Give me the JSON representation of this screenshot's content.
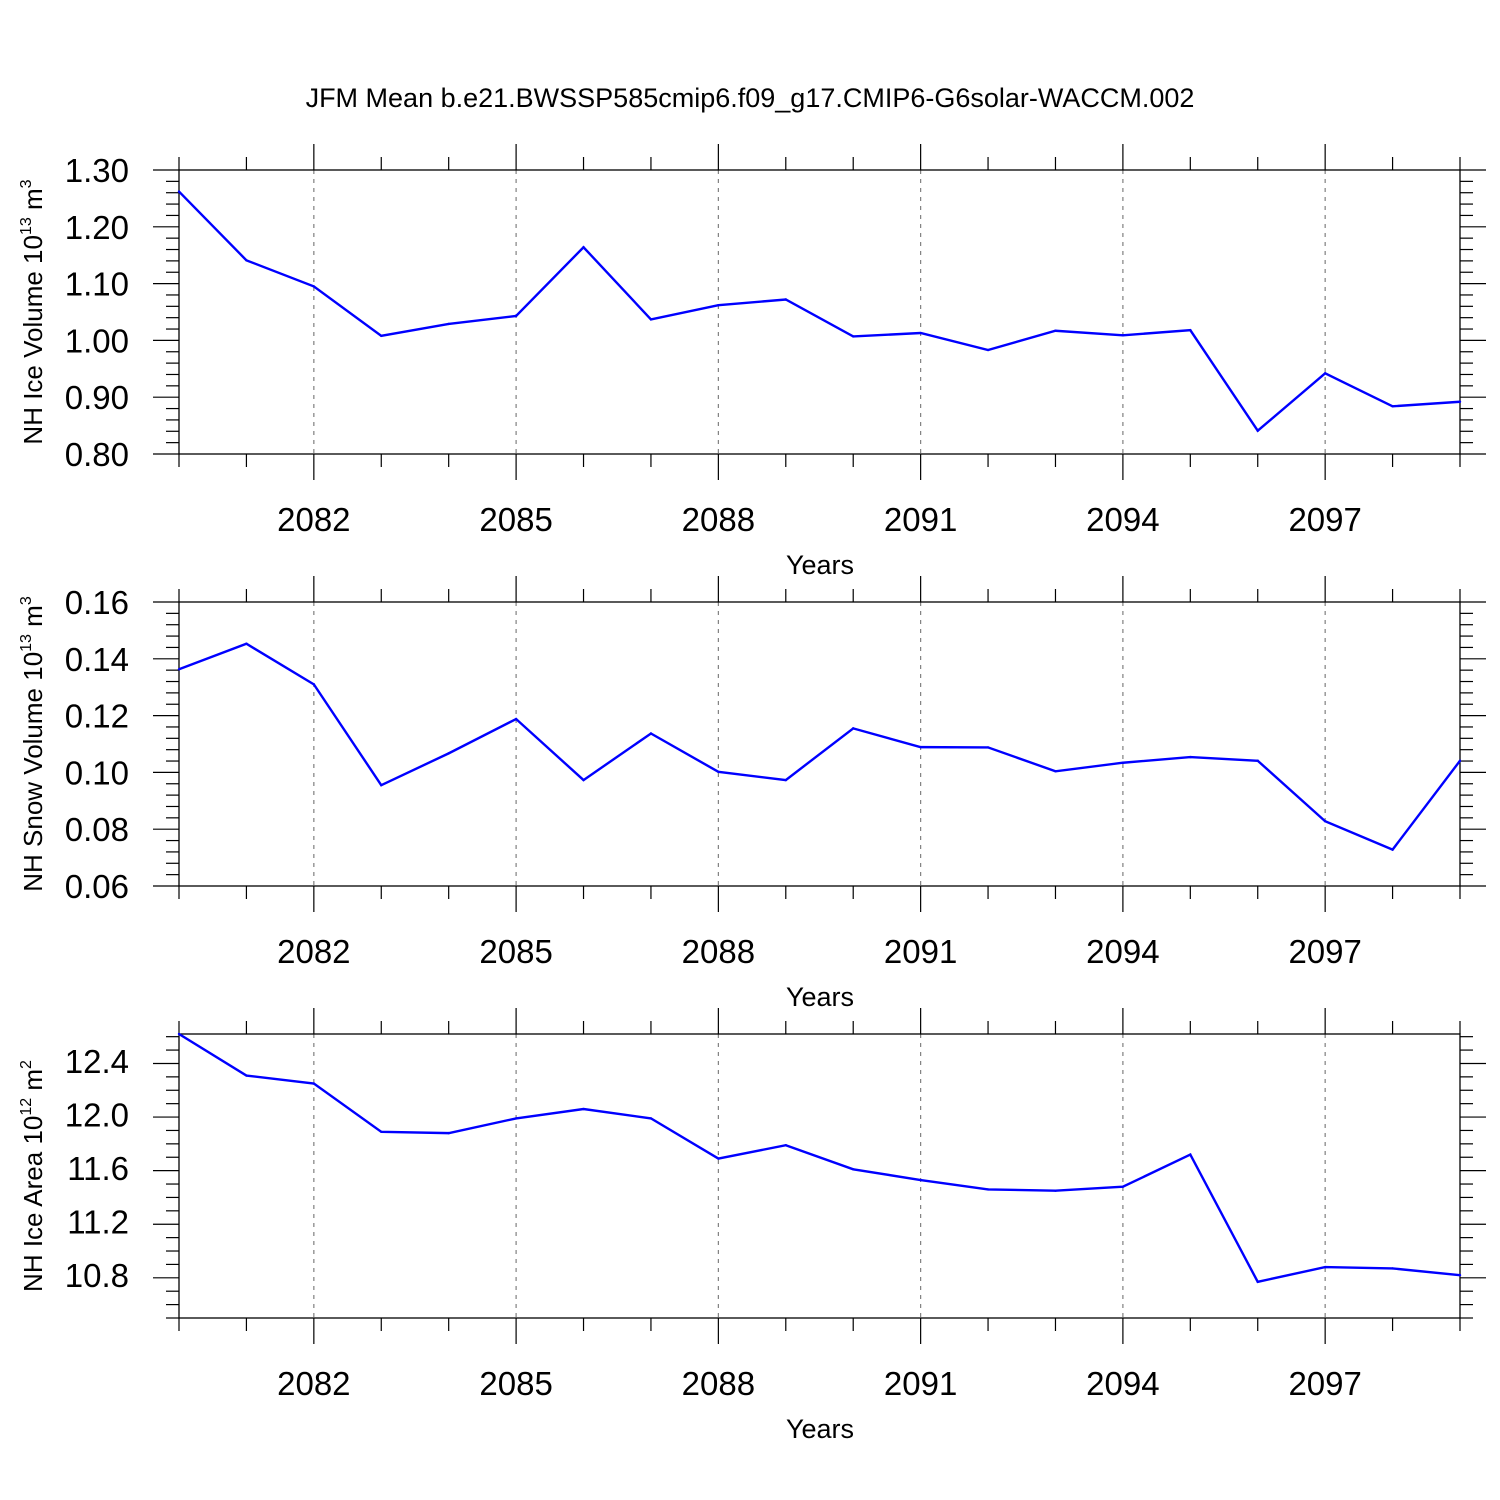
{
  "title": "JFM Mean b.e21.BWSSP585cmip6.f09_g17.CMIP6-G6solar-WACCM.002",
  "colors": {
    "line": "#0000ff",
    "grid": "#808080",
    "axis": "#000000"
  },
  "chart_data": [
    {
      "type": "line",
      "xlabel": "Years",
      "ylabel": {
        "text": "NH Ice Volume 10",
        "sup1": "13",
        "mid": " m",
        "sup2": "3"
      },
      "x": [
        2080,
        2081,
        2082,
        2083,
        2084,
        2085,
        2086,
        2087,
        2088,
        2089,
        2090,
        2091,
        2092,
        2093,
        2094,
        2095,
        2096,
        2097,
        2098,
        2099
      ],
      "series": [
        {
          "values": [
            1.262,
            1.141,
            1.095,
            1.008,
            1.029,
            1.043,
            1.164,
            1.037,
            1.062,
            1.072,
            1.007,
            1.013,
            0.983,
            1.017,
            1.009,
            1.018,
            0.841,
            0.942,
            0.884,
            0.892
          ]
        }
      ],
      "xlim": [
        2080,
        2099
      ],
      "ylim": [
        0.8,
        1.3
      ],
      "xticks": [
        2082,
        2085,
        2088,
        2091,
        2094,
        2097
      ],
      "xtick_labels": [
        "2082",
        "2085",
        "2088",
        "2091",
        "2094",
        "2097"
      ],
      "yticks": [
        0.8,
        0.9,
        1.0,
        1.1,
        1.2,
        1.3
      ],
      "ytick_labels": [
        "0.80",
        "0.90",
        "1.00",
        "1.10",
        "1.20",
        "1.30"
      ],
      "y_minor_step": 0.02,
      "grid": "vertical dashed at x major ticks"
    },
    {
      "type": "line",
      "xlabel": "Years",
      "ylabel": {
        "text": "NH Snow Volume 10",
        "sup1": "13",
        "mid": " m",
        "sup2": "3"
      },
      "x": [
        2080,
        2081,
        2082,
        2083,
        2084,
        2085,
        2086,
        2087,
        2088,
        2089,
        2090,
        2091,
        2092,
        2093,
        2094,
        2095,
        2096,
        2097,
        2098,
        2099
      ],
      "series": [
        {
          "values": [
            0.1363,
            0.1453,
            0.131,
            0.0955,
            0.1067,
            0.1188,
            0.0973,
            0.1137,
            0.1002,
            0.0973,
            0.1155,
            0.1089,
            0.1088,
            0.1004,
            0.1034,
            0.1054,
            0.1041,
            0.0828,
            0.0728,
            0.1041
          ]
        }
      ],
      "xlim": [
        2080,
        2099
      ],
      "ylim": [
        0.06,
        0.16
      ],
      "xticks": [
        2082,
        2085,
        2088,
        2091,
        2094,
        2097
      ],
      "xtick_labels": [
        "2082",
        "2085",
        "2088",
        "2091",
        "2094",
        "2097"
      ],
      "yticks": [
        0.06,
        0.08,
        0.1,
        0.12,
        0.14,
        0.16
      ],
      "ytick_labels": [
        "0.06",
        "0.08",
        "0.10",
        "0.12",
        "0.14",
        "0.16"
      ],
      "y_minor_step": 0.004,
      "grid": "vertical dashed at x major ticks"
    },
    {
      "type": "line",
      "xlabel": "Years",
      "ylabel": {
        "text": "NH Ice Area 10",
        "sup1": "12",
        "mid": " m",
        "sup2": "2"
      },
      "x": [
        2080,
        2081,
        2082,
        2083,
        2084,
        2085,
        2086,
        2087,
        2088,
        2089,
        2090,
        2091,
        2092,
        2093,
        2094,
        2095,
        2096,
        2097,
        2098,
        2099
      ],
      "series": [
        {
          "values": [
            12.6,
            12.29,
            12.23,
            11.87,
            11.86,
            11.97,
            12.04,
            11.97,
            11.67,
            11.77,
            11.59,
            11.51,
            11.44,
            11.43,
            11.46,
            11.7,
            10.75,
            10.86,
            10.85,
            10.8
          ]
        }
      ],
      "xlim": [
        2080,
        2099
      ],
      "ylim": [
        10.48,
        12.6
      ],
      "xticks": [
        2082,
        2085,
        2088,
        2091,
        2094,
        2097
      ],
      "xtick_labels": [
        "2082",
        "2085",
        "2088",
        "2091",
        "2094",
        "2097"
      ],
      "yticks": [
        10.8,
        11.2,
        11.6,
        12.0,
        12.4
      ],
      "ytick_labels": [
        "10.8",
        "11.2",
        "11.6",
        "12.0",
        "12.4"
      ],
      "y_minor_step": 0.1,
      "grid": "vertical dashed at x major ticks"
    }
  ]
}
